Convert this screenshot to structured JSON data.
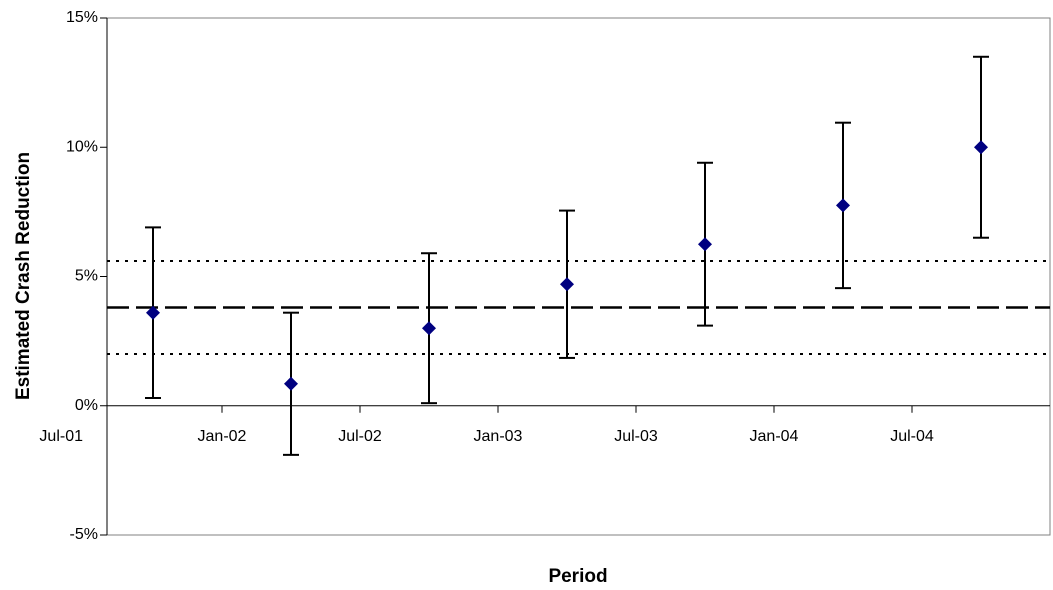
{
  "chart_data": {
    "type": "scatter",
    "x_label": "Period",
    "y_label": "Estimated Crash Reduction",
    "x": [
      "2001-10",
      "2002-04",
      "2002-10",
      "2003-04",
      "2003-10",
      "2004-04",
      "2004-10"
    ],
    "series": [
      {
        "color": "#000080",
        "values": [
          3.6,
          0.85,
          3.0,
          4.7,
          6.25,
          7.75,
          10.0
        ],
        "errors": [
          3.3,
          2.75,
          2.9,
          2.85,
          3.15,
          3.2,
          3.5
        ]
      }
    ],
    "reference_lines": [
      {
        "value": 5.6,
        "style": "dotted"
      },
      {
        "value": 3.8,
        "style": "dashed"
      },
      {
        "value": 2.0,
        "style": "dotted"
      }
    ],
    "xlim": [
      "2001-08",
      "2005-01"
    ],
    "xticks": [
      {
        "value": "2001-07",
        "label": "Jul-01"
      },
      {
        "value": "2002-01",
        "label": "Jan-02"
      },
      {
        "value": "2002-07",
        "label": "Jul-02"
      },
      {
        "value": "2003-01",
        "label": "Jan-03"
      },
      {
        "value": "2003-07",
        "label": "Jul-03"
      },
      {
        "value": "2004-01",
        "label": "Jan-04"
      },
      {
        "value": "2004-07",
        "label": "Jul-04"
      }
    ],
    "ylim": [
      -5,
      15
    ],
    "yticks": [
      {
        "value": -5,
        "label": "-5%"
      },
      {
        "value": 0,
        "label": "0%"
      },
      {
        "value": 5,
        "label": "5%"
      },
      {
        "value": 10,
        "label": "10%"
      },
      {
        "value": 15,
        "label": "15%"
      }
    ],
    "grid": false
  }
}
